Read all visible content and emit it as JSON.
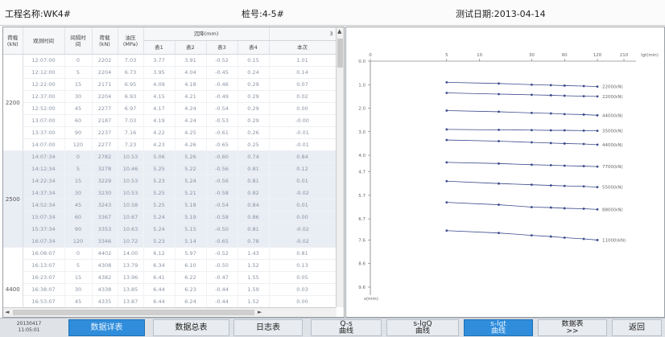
{
  "header": {
    "project": "工程名称:WK4#",
    "pile": "桩号:4-5#",
    "date": "测试日期:2013-04-14"
  },
  "table": {
    "headers": {
      "load": "荷载\n(kN)",
      "time": "观测时间",
      "interval": "间隔时\n间",
      "force": "荷载\n(kN)",
      "pressure": "油压\n(MPa)",
      "group": "沉降(mm)",
      "t1": "表1",
      "t2": "表2",
      "t3": "表3",
      "t4": "表4",
      "current": "本次",
      "scroll_top": "3"
    },
    "groups": [
      {
        "load": "2200",
        "rows": [
          [
            "12:07:00",
            "0",
            "2202",
            "7.03",
            "3.77",
            "3.91",
            "-0.52",
            "0.15",
            "1.01"
          ],
          [
            "12:12:00",
            "5",
            "2204",
            "6.73",
            "3.95",
            "4.04",
            "-0.45",
            "0.24",
            "0.14"
          ],
          [
            "12:22:00",
            "15",
            "2171",
            "6.95",
            "4.09",
            "4.18",
            "-0.46",
            "0.29",
            "0.07"
          ],
          [
            "12:37:00",
            "30",
            "2204",
            "6.93",
            "4.15",
            "4.21",
            "-0.49",
            "0.29",
            "0.02"
          ],
          [
            "12:52:00",
            "45",
            "2277",
            "6.97",
            "4.17",
            "4.24",
            "-0.54",
            "0.29",
            "0.00"
          ],
          [
            "13:07:00",
            "60",
            "2187",
            "7.03",
            "4.19",
            "4.24",
            "-0.53",
            "0.29",
            "-0.00"
          ],
          [
            "13:37:00",
            "90",
            "2237",
            "7.16",
            "4.22",
            "4.25",
            "-0.61",
            "0.26",
            "-0.01"
          ],
          [
            "14:07:00",
            "120",
            "2277",
            "7.23",
            "4.23",
            "4.26",
            "-0.65",
            "0.25",
            "-0.01"
          ]
        ]
      },
      {
        "load": "2500",
        "rows": [
          [
            "14:07:34",
            "0",
            "2782",
            "10.53",
            "5.06",
            "5.26",
            "-0.60",
            "0.74",
            "0.84"
          ],
          [
            "14:12:34",
            "5",
            "3278",
            "10.46",
            "5.25",
            "5.22",
            "-0.56",
            "0.81",
            "0.12"
          ],
          [
            "14:22:34",
            "15",
            "3229",
            "10.53",
            "5.23",
            "5.24",
            "-0.56",
            "0.81",
            "0.01"
          ],
          [
            "14:37:34",
            "30",
            "3230",
            "10.53",
            "5.25",
            "5.21",
            "-0.58",
            "0.82",
            "-0.02"
          ],
          [
            "14:52:34",
            "45",
            "3243",
            "10.58",
            "5.25",
            "5.18",
            "-0.54",
            "0.84",
            "0.01"
          ],
          [
            "15:07:34",
            "60",
            "3367",
            "10.67",
            "5.24",
            "5.19",
            "-0.58",
            "0.86",
            "0.00"
          ],
          [
            "15:37:34",
            "90",
            "3353",
            "10.63",
            "5.24",
            "5.15",
            "-0.50",
            "0.81",
            "-0.02"
          ],
          [
            "16:07:34",
            "120",
            "3346",
            "10.72",
            "5.23",
            "5.14",
            "-0.65",
            "0.78",
            "-0.02"
          ]
        ]
      },
      {
        "load": "4400",
        "rows": [
          [
            "16:08:07",
            "0",
            "4402",
            "14.00",
            "6.12",
            "5.97",
            "-0.52",
            "1.43",
            "0.81"
          ],
          [
            "16:13:07",
            "5",
            "4308",
            "13.79",
            "6.34",
            "6.10",
            "-0.50",
            "1.52",
            "0.13"
          ],
          [
            "16:23:07",
            "15",
            "4382",
            "13.96",
            "6.41",
            "6.22",
            "-0.47",
            "1.55",
            "0.05"
          ],
          [
            "16:38:07",
            "30",
            "4338",
            "13.85",
            "6.44",
            "6.23",
            "-0.44",
            "1.59",
            "0.03"
          ],
          [
            "16:53:07",
            "45",
            "4335",
            "13.87",
            "6.44",
            "6.24",
            "-0.44",
            "1.52",
            "0.00"
          ],
          [
            "17:08:07",
            "60",
            "4325",
            "13.87",
            "6.46",
            "6.25",
            "-0.44",
            "1.56",
            "0.01"
          ],
          [
            "18:08:15",
            "90",
            "4365",
            "14.05",
            "6.54",
            "6.34",
            "-0.45",
            "1.63",
            "0.05"
          ]
        ]
      }
    ]
  },
  "chart_data": {
    "type": "line",
    "title": "",
    "xlabel": "lgt(min)",
    "ylabel": "s(mm)",
    "xscale": "log",
    "x_tick_labels": [
      "0",
      "5",
      "10",
      "30",
      "60",
      "120",
      "210"
    ],
    "y_tick_labels": [
      "0.0",
      "1.0",
      "2.0",
      "3.0",
      "4.0",
      "4.7",
      "5.7",
      "6.7",
      "7.6",
      "8.6",
      "9.6"
    ],
    "ylim": [
      0,
      9.6
    ],
    "grid": false,
    "series": [
      {
        "name": "2200(kN)",
        "x": [
          5,
          15,
          30,
          45,
          60,
          90,
          120
        ],
        "y": [
          0.9,
          0.95,
          1.0,
          1.02,
          1.04,
          1.06,
          1.08
        ]
      },
      {
        "name": "2200(kN)",
        "x": [
          5,
          15,
          30,
          45,
          60,
          90,
          120
        ],
        "y": [
          1.35,
          1.4,
          1.43,
          1.45,
          1.47,
          1.49,
          1.5
        ]
      },
      {
        "name": "4400(kN)",
        "x": [
          5,
          15,
          30,
          45,
          60,
          90,
          120
        ],
        "y": [
          2.1,
          2.15,
          2.2,
          2.22,
          2.25,
          2.27,
          2.3
        ]
      },
      {
        "name": "3500(kN)",
        "x": [
          5,
          15,
          30,
          45,
          60,
          90,
          120
        ],
        "y": [
          2.9,
          2.92,
          2.93,
          2.94,
          2.94,
          2.95,
          2.96
        ]
      },
      {
        "name": "4400(kN)",
        "x": [
          5,
          15,
          30,
          45,
          60,
          90,
          120
        ],
        "y": [
          3.35,
          3.4,
          3.45,
          3.48,
          3.5,
          3.52,
          3.55
        ]
      },
      {
        "name": "7700(kN)",
        "x": [
          5,
          15,
          30,
          45,
          60,
          90,
          120
        ],
        "y": [
          4.3,
          4.35,
          4.4,
          4.42,
          4.44,
          4.46,
          4.48
        ]
      },
      {
        "name": "5500(kN)",
        "x": [
          5,
          15,
          30,
          45,
          60,
          90,
          120
        ],
        "y": [
          5.1,
          5.2,
          5.25,
          5.28,
          5.3,
          5.32,
          5.35
        ]
      },
      {
        "name": "8800(kN)",
        "x": [
          5,
          15,
          30,
          45,
          60,
          90,
          120
        ],
        "y": [
          6.0,
          6.1,
          6.2,
          6.22,
          6.25,
          6.27,
          6.3
        ]
      },
      {
        "name": "11000(kN)",
        "x": [
          5,
          15,
          30,
          45,
          60,
          90,
          120
        ],
        "y": [
          7.2,
          7.3,
          7.4,
          7.45,
          7.5,
          7.55,
          7.6
        ]
      }
    ]
  },
  "footer": {
    "stamp_line1": "20130417",
    "stamp_line2": "11:05:01",
    "buttons": [
      {
        "line1": "数据详表",
        "line2": "",
        "active": true
      },
      {
        "line1": "数据总表",
        "line2": "",
        "active": false
      },
      {
        "line1": "日志表",
        "line2": "",
        "active": false
      },
      {
        "line1": "Q-s",
        "line2": "曲线",
        "active": false
      },
      {
        "line1": "s-lgQ",
        "line2": "曲线",
        "active": false
      },
      {
        "line1": "s-lgt",
        "line2": "曲线",
        "active": true
      },
      {
        "line1": "数据表",
        "line2": ">>",
        "active": false
      },
      {
        "line1": "返回",
        "line2": "",
        "active": false
      }
    ]
  },
  "colors": {
    "active_button": "#2f8ddb",
    "curve": "#3a4a8c",
    "alt_group_row": "#e9edf4"
  },
  "icons": {
    "scroll_up": "▲",
    "scroll_left": "◄",
    "scroll_right": "►"
  }
}
